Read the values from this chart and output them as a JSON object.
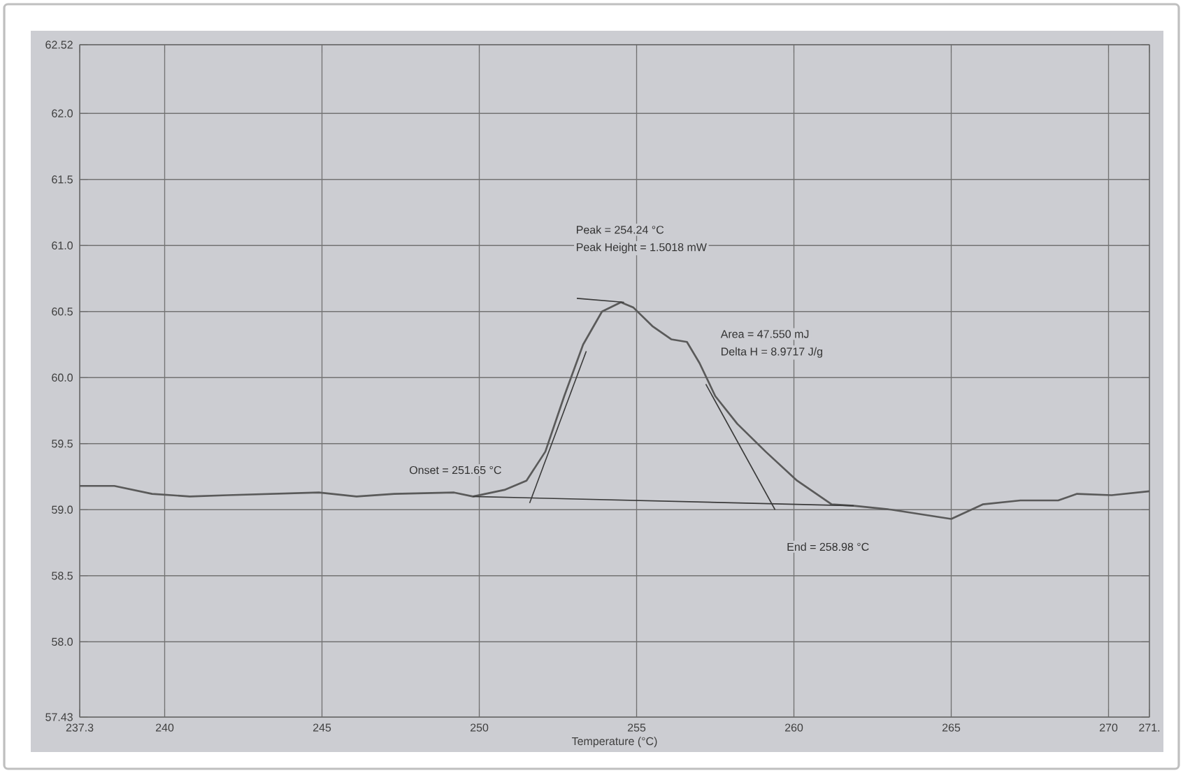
{
  "chart_data": {
    "type": "line",
    "xlabel": "Temperature (°C)",
    "xlim": [
      237.3,
      271.3
    ],
    "xticks": [
      237.3,
      240,
      245,
      250,
      255,
      260,
      265,
      270,
      {
        "value": 271.3,
        "label": "271."
      }
    ],
    "ylim": [
      57.43,
      62.52
    ],
    "yticks": [
      57.43,
      {
        "value": 58,
        "label": "58.0"
      },
      58.5,
      {
        "value": 59,
        "label": "59.0"
      },
      59.5,
      {
        "value": 60,
        "label": "60.0"
      },
      60.5,
      {
        "value": 61,
        "label": "61.0"
      },
      61.5,
      {
        "value": 62,
        "label": "62.0"
      },
      62.52
    ],
    "grid": true,
    "marker": "none",
    "line_style": "solid",
    "series": [
      {
        "color": "#5a5a5a",
        "x": [
          237.3,
          238.4,
          239.6,
          240.8,
          242.0,
          244.9,
          246.1,
          247.3,
          249.2,
          249.8,
          250.8,
          251.5,
          252.1,
          252.7,
          253.3,
          253.9,
          254.5,
          254.9,
          255.5,
          256.1,
          256.6,
          257.0,
          257.5,
          258.2,
          259.1,
          260.1,
          261.2,
          261.9,
          263.1,
          265.0,
          266.0,
          267.2,
          268.4,
          269.0,
          270.1,
          271.3
        ],
        "values": [
          59.18,
          59.18,
          59.12,
          59.1,
          59.11,
          59.13,
          59.1,
          59.12,
          59.13,
          59.1,
          59.15,
          59.22,
          59.44,
          59.86,
          60.25,
          60.5,
          60.57,
          60.53,
          60.39,
          60.29,
          60.27,
          60.11,
          59.86,
          59.65,
          59.44,
          59.22,
          59.04,
          59.03,
          59.0,
          58.93,
          59.04,
          59.07,
          59.07,
          59.12,
          59.11,
          59.14
        ]
      },
      {
        "color": "#3a3a3a",
        "x": [
          249.8,
          261.9
        ],
        "values": [
          59.1,
          59.03
        ]
      },
      {
        "color": "#3a3a3a",
        "x": [
          251.6,
          253.4
        ],
        "values": [
          59.05,
          60.2
        ]
      },
      {
        "color": "#3a3a3a",
        "x": [
          253.1,
          254.6
        ],
        "values": [
          60.6,
          60.57
        ]
      },
      {
        "color": "#3a3a3a",
        "x": [
          257.2,
          259.4
        ],
        "values": [
          59.95,
          59.0
        ]
      }
    ],
    "annotations": [
      "Peak = 254.24 °C",
      "Peak Height = 1.5018 mW",
      "Area = 47.550 mJ",
      "Delta H = 8.9717 J/g",
      "Onset = 251.65 °C",
      "End = 258.98 °C"
    ]
  }
}
